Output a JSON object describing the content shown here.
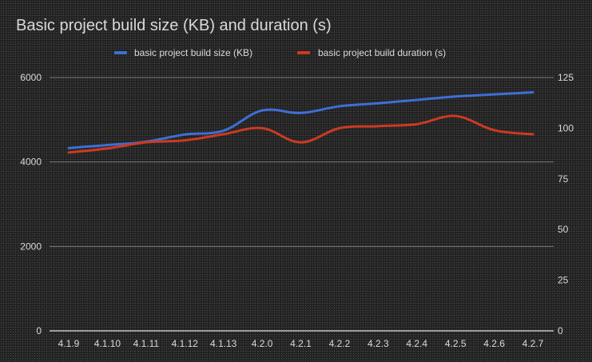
{
  "colors": {
    "background": "#222222",
    "text": "#d9d9d9",
    "gridline": "#bdbdbd"
  },
  "chart_data": {
    "type": "line",
    "title": "Basic project build size (KB) and duration (s)",
    "legend_position": "top",
    "grid": true,
    "categories": [
      "4.1.9",
      "4.1.10",
      "4.1.11",
      "4.1.12",
      "4.1.13",
      "4.2.0",
      "4.2.1",
      "4.2.2",
      "4.2.3",
      "4.2.4",
      "4.2.5",
      "4.2.6",
      "4.2.7"
    ],
    "y_left": {
      "ticks": [
        "0",
        "2000",
        "4000",
        "6000"
      ],
      "min": 0,
      "max": 6000
    },
    "y_right": {
      "ticks": [
        "0",
        "25",
        "50",
        "75",
        "100",
        "125"
      ],
      "min": 0,
      "max": 125
    },
    "series": [
      {
        "name": "basic project build size (KB)",
        "axis": "left",
        "color": "#3d6fd6",
        "values": [
          4330,
          4400,
          4480,
          4650,
          4740,
          5220,
          5160,
          5320,
          5390,
          5470,
          5550,
          5600,
          5650
        ]
      },
      {
        "name": "basic project build duration (s)",
        "axis": "right",
        "color": "#cc3a22",
        "values": [
          88,
          90,
          93,
          94,
          97,
          100,
          93,
          100,
          101,
          102,
          106,
          99,
          97
        ]
      }
    ]
  }
}
